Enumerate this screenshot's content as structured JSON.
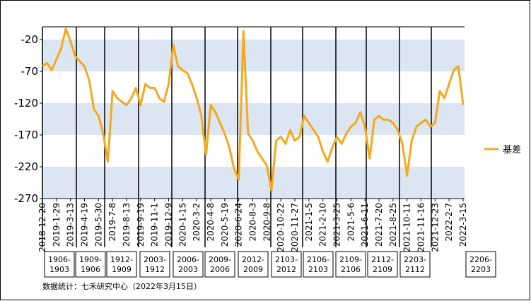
{
  "chart_data": {
    "type": "line",
    "categories": [
      "2018-12-20",
      null,
      null,
      "2019-1-29",
      null,
      null,
      "2019-3-13",
      null,
      null,
      "2019-4-19",
      null,
      null,
      "2019-5-30",
      null,
      null,
      "2019-7-8",
      null,
      null,
      "2019-8-13",
      null,
      null,
      "2019-9-19",
      null,
      null,
      "2019-11-1",
      null,
      null,
      "2019-12-9",
      null,
      null,
      "2020-1-15",
      null,
      null,
      "2020-3-2",
      null,
      null,
      "2020-4-8",
      null,
      null,
      "2020-5-19",
      null,
      null,
      "2020-6-24",
      null,
      null,
      "2020-8-3",
      null,
      null,
      "2020-9-8",
      null,
      null,
      "2020-10-22",
      null,
      null,
      "2020-11-27",
      null,
      null,
      "2021-1-5",
      null,
      null,
      "2021-2-10",
      null,
      null,
      "2021-3-25",
      null,
      null,
      "2021-5-6",
      null,
      null,
      "2021-6-11",
      null,
      null,
      "2021-7-20",
      null,
      null,
      "2021-8-25",
      null,
      null,
      "2021-10-11",
      null,
      null,
      "2021-11-16",
      null,
      null,
      "2021-12-23",
      null,
      null,
      "2022-2-7",
      null,
      null,
      "2022-3-15"
    ],
    "series": [
      {
        "name": "基差",
        "color": "#f5a81c",
        "values": [
          -62,
          -57,
          -68,
          -51,
          -34,
          -3,
          -23,
          -46,
          -54,
          -62,
          -84,
          -129,
          -140,
          -168,
          -212,
          -101,
          -112,
          -118,
          -123,
          -112,
          -96,
          -123,
          -90,
          -96,
          -96,
          -112,
          -118,
          -90,
          -29,
          -62,
          -68,
          -73,
          -90,
          -112,
          -140,
          -201,
          -123,
          -134,
          -151,
          -168,
          -190,
          -223,
          -240,
          -7,
          -168,
          -179,
          -196,
          -207,
          -218,
          -257,
          -179,
          -173,
          -184,
          -162,
          -179,
          -173,
          -140,
          -151,
          -162,
          -173,
          -196,
          -212,
          -190,
          -173,
          -184,
          -168,
          -157,
          -151,
          -134,
          -157,
          -207,
          -146,
          -140,
          -146,
          -146,
          -151,
          -162,
          -184,
          -234,
          -179,
          -157,
          -151,
          -146,
          -157,
          -151,
          -101,
          -112,
          -90,
          -68,
          -62,
          -123
        ]
      }
    ],
    "ylim": [
      -270,
      0
    ],
    "yticks": [
      -20,
      -70,
      -120,
      -170,
      -220,
      -270
    ],
    "contracts": [
      [
        "1906-",
        "1903"
      ],
      [
        "1909-",
        "1906"
      ],
      [
        "1912-",
        "1909"
      ],
      [
        "2003-",
        "1912"
      ],
      [
        "2006-",
        "2003"
      ],
      [
        "2009-",
        "2006"
      ],
      [
        "2012-",
        "2009"
      ],
      [
        "2103-",
        "2012"
      ],
      [
        "2106-",
        "2103"
      ],
      [
        "2109-",
        "2106"
      ],
      [
        "2112-",
        "2109"
      ],
      [
        "2203-",
        "2112"
      ],
      [
        "2206-",
        "2203"
      ]
    ],
    "source": "数据统计：七禾研究中心（2022年3月15日）"
  }
}
